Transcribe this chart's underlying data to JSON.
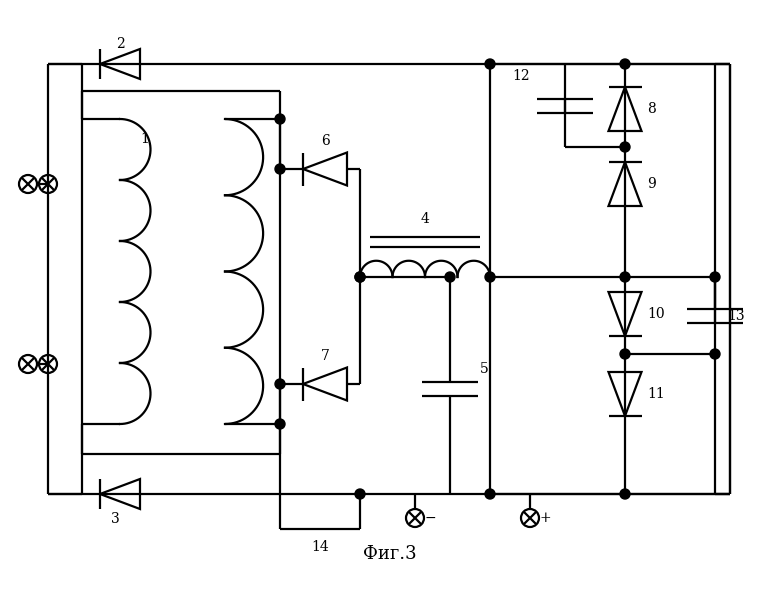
{
  "title": "Фиг.3",
  "bg": "#ffffff",
  "lc": "#000000",
  "lw": 1.6,
  "fs": 10,
  "fig_w": 7.8,
  "fig_h": 5.99
}
